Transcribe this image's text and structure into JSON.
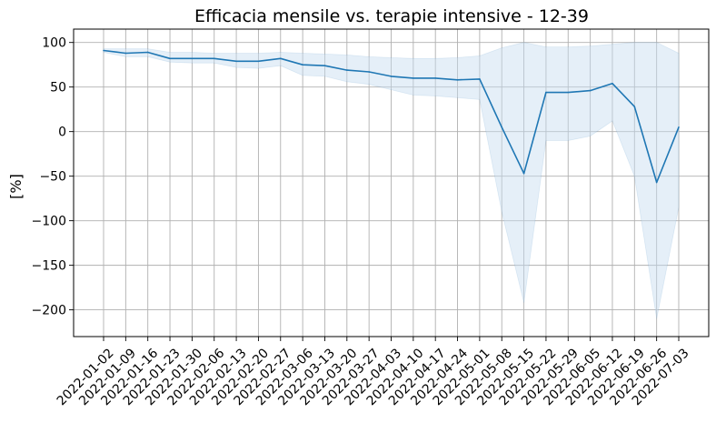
{
  "chart_data": {
    "type": "line",
    "title": "Efficacia mensile vs. terapie intensive - 12-39",
    "xlabel": "",
    "ylabel": "[%]",
    "ylim": [
      -230,
      115
    ],
    "y_ticks": [
      100,
      50,
      0,
      -50,
      -100,
      -150,
      -200
    ],
    "y_tick_labels": [
      "100",
      "50",
      "0",
      "−50",
      "−100",
      "−150",
      "−200"
    ],
    "grid": true,
    "x": [
      "2022-01-02",
      "2022-01-09",
      "2022-01-16",
      "2022-01-23",
      "2022-01-30",
      "2022-02-06",
      "2022-02-13",
      "2022-02-20",
      "2022-02-27",
      "2022-03-06",
      "2022-03-13",
      "2022-03-20",
      "2022-03-27",
      "2022-04-03",
      "2022-04-10",
      "2022-04-17",
      "2022-04-24",
      "2022-05-01",
      "2022-05-08",
      "2022-05-15",
      "2022-05-22",
      "2022-05-29",
      "2022-06-05",
      "2022-06-12",
      "2022-06-19",
      "2022-06-26",
      "2022-07-03"
    ],
    "series": [
      {
        "values": [
          91,
          88,
          89,
          82,
          82,
          82,
          79,
          79,
          82,
          75,
          74,
          69,
          67,
          62,
          60,
          60,
          58,
          59,
          5,
          -47,
          44,
          44,
          46,
          54,
          28,
          -57,
          5
        ],
        "lower": [
          89,
          84,
          84,
          78,
          77,
          77,
          72,
          71,
          74,
          63,
          62,
          56,
          53,
          47,
          41,
          40,
          38,
          36,
          -90,
          -192,
          -10,
          -10,
          -5,
          12,
          -50,
          -210,
          -85
        ],
        "upper": [
          93,
          93,
          93,
          89,
          89,
          88,
          88,
          88,
          89,
          88,
          87,
          86,
          84,
          83,
          82,
          82,
          83,
          85,
          94,
          100,
          95,
          95,
          96,
          98,
          100,
          100,
          88
        ],
        "color": "#1f77b4",
        "band_color": "#c6dbef"
      }
    ]
  }
}
